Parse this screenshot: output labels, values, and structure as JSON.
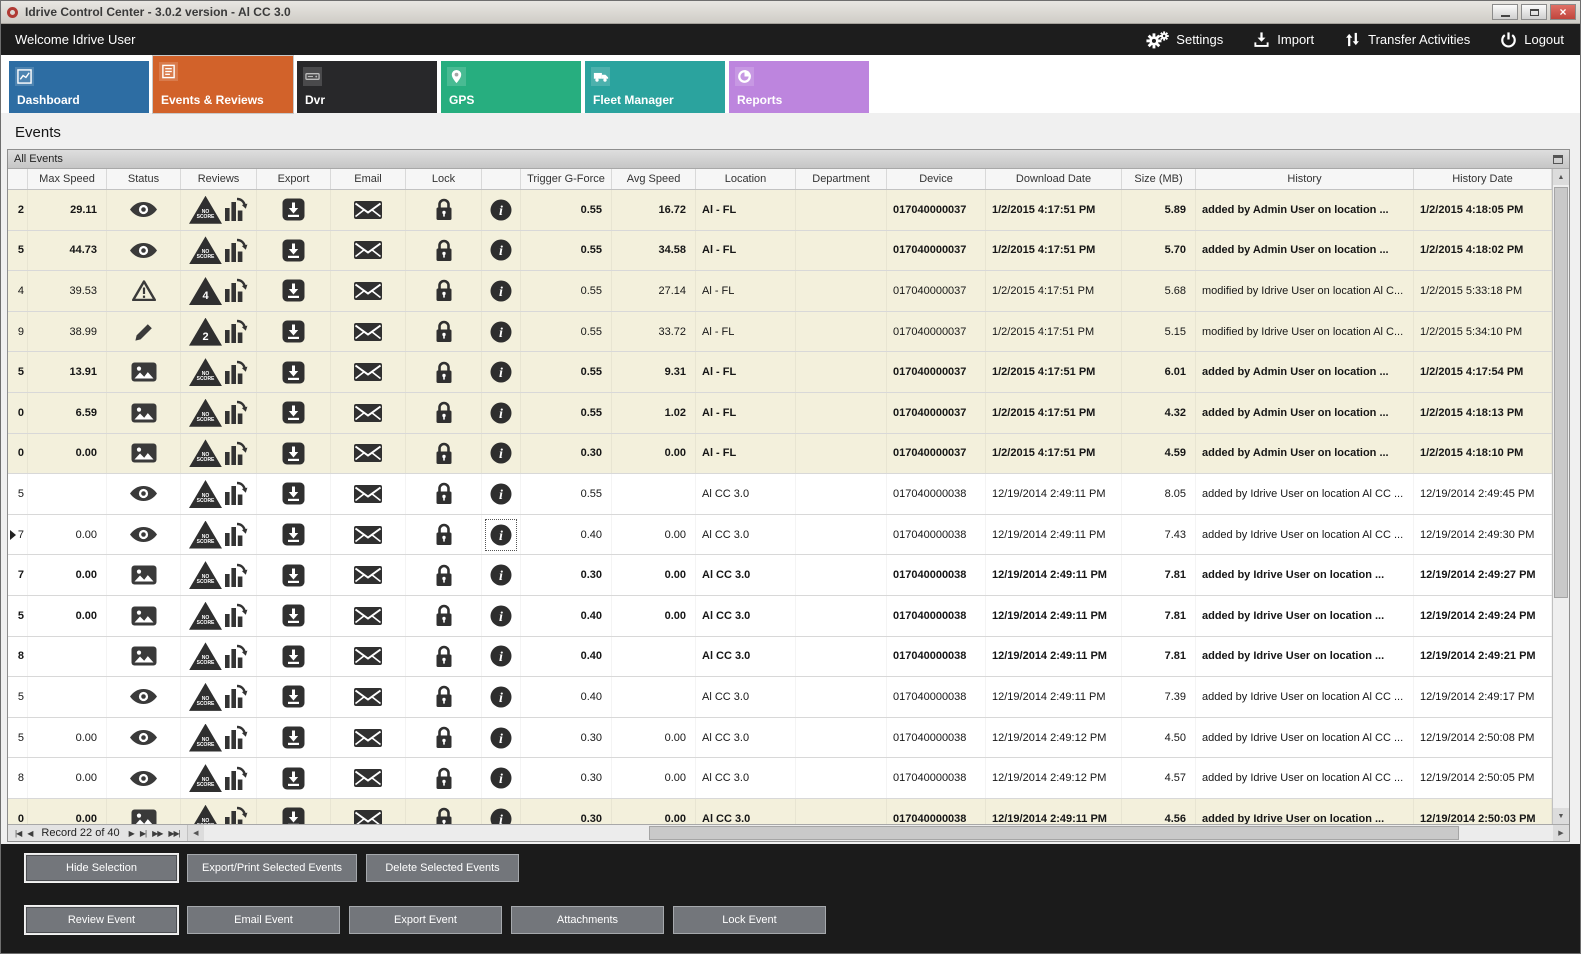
{
  "window": {
    "title": "Idrive Control Center - 3.0.2 version - Al CC 3.0"
  },
  "topbar": {
    "welcome": "Welcome Idrive User",
    "actions": [
      {
        "label": "Settings",
        "icon": "gears-icon"
      },
      {
        "label": "Import",
        "icon": "import-download-icon"
      },
      {
        "label": "Transfer Activities",
        "icon": "transfer-arrows-icon"
      },
      {
        "label": "Logout",
        "icon": "power-icon"
      }
    ]
  },
  "tabs": [
    {
      "label": "Dashboard",
      "color": "#2d6da3",
      "icon": "line-chart-icon",
      "active": false
    },
    {
      "label": "Events & Reviews",
      "color": "#d2622a",
      "icon": "events-list-icon",
      "active": true
    },
    {
      "label": "Dvr",
      "color": "#28282a",
      "icon": "dvr-box-icon",
      "active": false
    },
    {
      "label": "GPS",
      "color": "#27ae7f",
      "icon": "map-pin-icon",
      "active": false
    },
    {
      "label": "Fleet Manager",
      "color": "#2ba39e",
      "icon": "truck-icon",
      "active": false
    },
    {
      "label": "Reports",
      "color": "#bd85de",
      "icon": "pie-chart-icon",
      "active": false
    }
  ],
  "page": {
    "heading": "Events"
  },
  "panel": {
    "title": "All Events"
  },
  "table": {
    "columns": [
      "",
      "Max Speed",
      "Status",
      "Reviews",
      "Export",
      "Email",
      "Lock",
      "",
      "Trigger G-Force",
      "Avg Speed",
      "Location",
      "Department",
      "Device",
      "Download Date",
      "Size (MB)",
      "History",
      "History Date"
    ],
    "rows": [
      {
        "edge": "2",
        "max_speed": "29.11",
        "status": "eye",
        "review": "NO SCORE",
        "trigger": "0.55",
        "avg_speed": "16.72",
        "location": "Al - FL",
        "department": "",
        "device": "017040000037",
        "download_date": "1/2/2015 4:17:51 PM",
        "size": "5.89",
        "history": "added by Admin User on location ...",
        "history_date": "1/2/2015 4:18:05 PM",
        "bold": true,
        "shade": "beige"
      },
      {
        "edge": "5",
        "max_speed": "44.73",
        "status": "eye",
        "review": "NO SCORE",
        "trigger": "0.55",
        "avg_speed": "34.58",
        "location": "Al - FL",
        "department": "",
        "device": "017040000037",
        "download_date": "1/2/2015 4:17:51 PM",
        "size": "5.70",
        "history": "added by Admin User on location ...",
        "history_date": "1/2/2015 4:18:02 PM",
        "bold": true,
        "shade": "beige"
      },
      {
        "edge": "4",
        "max_speed": "39.53",
        "status": "warning",
        "review": "4",
        "trigger": "0.55",
        "avg_speed": "27.14",
        "location": "Al - FL",
        "department": "",
        "device": "017040000037",
        "download_date": "1/2/2015 4:17:51 PM",
        "size": "5.68",
        "history": "modified by Idrive User on location Al C...",
        "history_date": "1/2/2015 5:33:18 PM",
        "bold": false,
        "shade": "beige"
      },
      {
        "edge": "9",
        "max_speed": "38.99",
        "status": "pencil",
        "review": "2",
        "trigger": "0.55",
        "avg_speed": "33.72",
        "location": "Al - FL",
        "department": "",
        "device": "017040000037",
        "download_date": "1/2/2015 4:17:51 PM",
        "size": "5.15",
        "history": "modified by Idrive User on location Al C...",
        "history_date": "1/2/2015 5:34:10 PM",
        "bold": false,
        "shade": "beige"
      },
      {
        "edge": "5",
        "max_speed": "13.91",
        "status": "image",
        "review": "NO SCORE",
        "trigger": "0.55",
        "avg_speed": "9.31",
        "location": "Al - FL",
        "department": "",
        "device": "017040000037",
        "download_date": "1/2/2015 4:17:51 PM",
        "size": "6.01",
        "history": "added by Admin User on location ...",
        "history_date": "1/2/2015 4:17:54 PM",
        "bold": true,
        "shade": "beige"
      },
      {
        "edge": "0",
        "max_speed": "6.59",
        "status": "image",
        "review": "NO SCORE",
        "trigger": "0.55",
        "avg_speed": "1.02",
        "location": "Al - FL",
        "department": "",
        "device": "017040000037",
        "download_date": "1/2/2015 4:17:51 PM",
        "size": "4.32",
        "history": "added by Admin User on location ...",
        "history_date": "1/2/2015 4:18:13 PM",
        "bold": true,
        "shade": "beige"
      },
      {
        "edge": "0",
        "max_speed": "0.00",
        "status": "image",
        "review": "NO SCORE",
        "trigger": "0.30",
        "avg_speed": "0.00",
        "location": "Al - FL",
        "department": "",
        "device": "017040000037",
        "download_date": "1/2/2015 4:17:51 PM",
        "size": "4.59",
        "history": "added by Admin User on location ...",
        "history_date": "1/2/2015 4:18:10 PM",
        "bold": true,
        "shade": "beige"
      },
      {
        "edge": "5",
        "max_speed": "",
        "status": "eye",
        "review": "NO SCORE",
        "trigger": "0.55",
        "avg_speed": "",
        "location": "Al CC 3.0",
        "department": "",
        "device": "017040000038",
        "download_date": "12/19/2014 2:49:11 PM",
        "size": "8.05",
        "history": "added by Idrive User on location Al CC ...",
        "history_date": "12/19/2014 2:49:45 PM",
        "bold": false,
        "shade": "white"
      },
      {
        "edge": "7",
        "max_speed": "0.00",
        "status": "eye",
        "review": "NO SCORE",
        "trigger": "0.40",
        "avg_speed": "0.00",
        "location": "Al CC 3.0",
        "department": "",
        "device": "017040000038",
        "download_date": "12/19/2014 2:49:11 PM",
        "size": "7.43",
        "history": "added by Idrive User on location Al CC ...",
        "history_date": "12/19/2014 2:49:30 PM",
        "bold": false,
        "shade": "white",
        "selected": true,
        "focus_info": true
      },
      {
        "edge": "7",
        "max_speed": "0.00",
        "status": "image",
        "review": "NO SCORE",
        "trigger": "0.30",
        "avg_speed": "0.00",
        "location": "Al CC 3.0",
        "department": "",
        "device": "017040000038",
        "download_date": "12/19/2014 2:49:11 PM",
        "size": "7.81",
        "history": "added by Idrive User on location ...",
        "history_date": "12/19/2014 2:49:27 PM",
        "bold": true,
        "shade": "white"
      },
      {
        "edge": "5",
        "max_speed": "0.00",
        "status": "image",
        "review": "NO SCORE",
        "trigger": "0.40",
        "avg_speed": "0.00",
        "location": "Al CC 3.0",
        "department": "",
        "device": "017040000038",
        "download_date": "12/19/2014 2:49:11 PM",
        "size": "7.81",
        "history": "added by Idrive User on location ...",
        "history_date": "12/19/2014 2:49:24 PM",
        "bold": true,
        "shade": "white"
      },
      {
        "edge": "8",
        "max_speed": "",
        "status": "image",
        "review": "NO SCORE",
        "trigger": "0.40",
        "avg_speed": "",
        "location": "Al CC 3.0",
        "department": "",
        "device": "017040000038",
        "download_date": "12/19/2014 2:49:11 PM",
        "size": "7.81",
        "history": "added by Idrive User on location ...",
        "history_date": "12/19/2014 2:49:21 PM",
        "bold": true,
        "shade": "white"
      },
      {
        "edge": "5",
        "max_speed": "",
        "status": "eye",
        "review": "NO SCORE",
        "trigger": "0.40",
        "avg_speed": "",
        "location": "Al CC 3.0",
        "department": "",
        "device": "017040000038",
        "download_date": "12/19/2014 2:49:11 PM",
        "size": "7.39",
        "history": "added by Idrive User on location Al CC ...",
        "history_date": "12/19/2014 2:49:17 PM",
        "bold": false,
        "shade": "white"
      },
      {
        "edge": "5",
        "max_speed": "0.00",
        "status": "eye",
        "review": "NO SCORE",
        "trigger": "0.30",
        "avg_speed": "0.00",
        "location": "Al CC 3.0",
        "department": "",
        "device": "017040000038",
        "download_date": "12/19/2014 2:49:12 PM",
        "size": "4.50",
        "history": "added by Idrive User on location Al CC ...",
        "history_date": "12/19/2014 2:50:08 PM",
        "bold": false,
        "shade": "white"
      },
      {
        "edge": "8",
        "max_speed": "0.00",
        "status": "eye",
        "review": "NO SCORE",
        "trigger": "0.30",
        "avg_speed": "0.00",
        "location": "Al CC 3.0",
        "department": "",
        "device": "017040000038",
        "download_date": "12/19/2014 2:49:12 PM",
        "size": "4.57",
        "history": "added by Idrive User on location Al CC ...",
        "history_date": "12/19/2014 2:50:05 PM",
        "bold": false,
        "shade": "white"
      },
      {
        "edge": "0",
        "max_speed": "0.00",
        "status": "image",
        "review": "NO SCORE",
        "trigger": "0.30",
        "avg_speed": "0.00",
        "location": "Al CC 3.0",
        "department": "",
        "device": "017040000038",
        "download_date": "12/19/2014 2:49:11 PM",
        "size": "4.56",
        "history": "added by Idrive User on location ...",
        "history_date": "12/19/2014 2:50:03 PM",
        "bold": true,
        "shade": "beige"
      }
    ]
  },
  "nav": {
    "record_label": "Record 22 of 40"
  },
  "bottom": {
    "selection_buttons": [
      "Hide Selection",
      "Export/Print Selected Events",
      "Delete Selected  Events"
    ],
    "event_buttons": [
      "Review Event",
      "Email Event",
      "Export Event",
      "Attachments",
      "Lock Event"
    ]
  },
  "icons": {
    "app_logo": "red-ring",
    "settings": "double-gear",
    "import": "download-into-tray",
    "transfer_activities": "up-down-arrows",
    "logout": "power-symbol",
    "status_types": [
      "eye",
      "warning-triangle",
      "pencil",
      "picture"
    ],
    "row_icons": [
      "review-score-triangle",
      "review-chart-arrow",
      "export-down-arrow",
      "envelope",
      "padlock",
      "info-circle"
    ],
    "record_nav": [
      "first",
      "previous",
      "next",
      "last",
      "next-page",
      "last-page"
    ]
  },
  "colors": {
    "row_highlight_beige": "#f3f0dc",
    "topbar_bg": "#1d1d1d",
    "bottom_bg": "#1b1b1b",
    "button_gray": "#73767b",
    "close_red": "#c0453c"
  }
}
